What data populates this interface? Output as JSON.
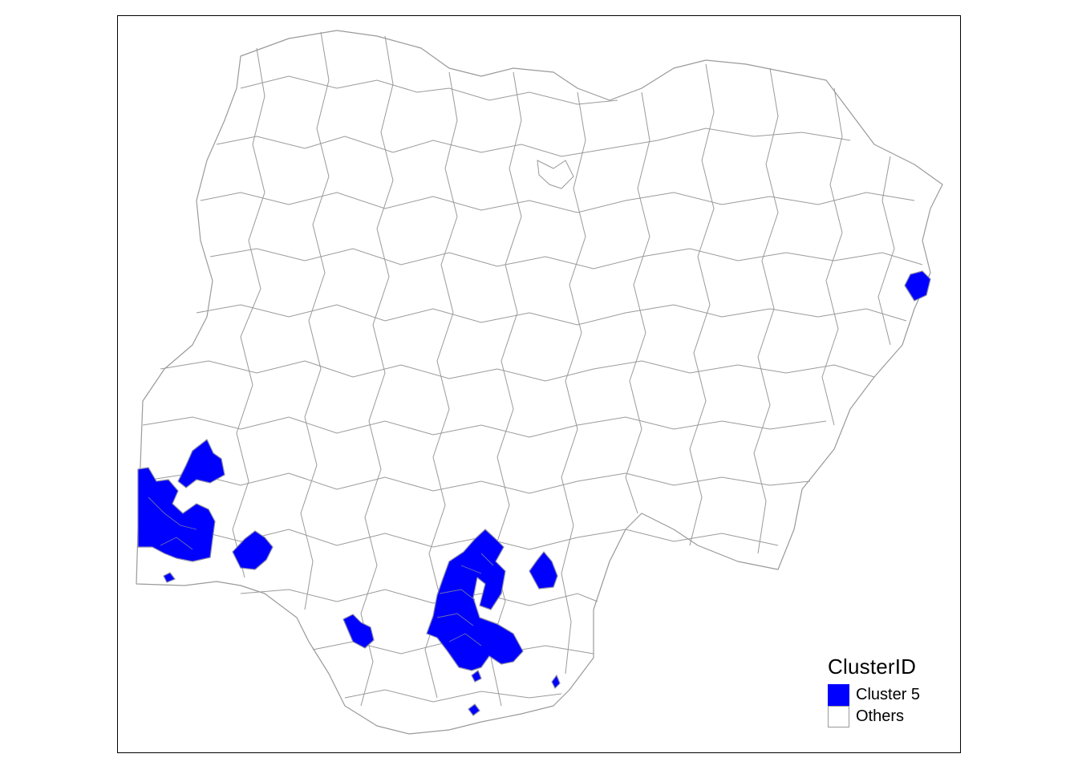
{
  "legend": {
    "title": "ClusterID",
    "items": [
      {
        "label": "Cluster 5",
        "color": "#0000ff",
        "border": "#0000ff"
      },
      {
        "label": "Others",
        "color": "#ffffff",
        "border": "#9a9a9a"
      }
    ]
  },
  "map": {
    "highlight_color": "#0000ff",
    "boundary_color": "#9a9a9a"
  }
}
